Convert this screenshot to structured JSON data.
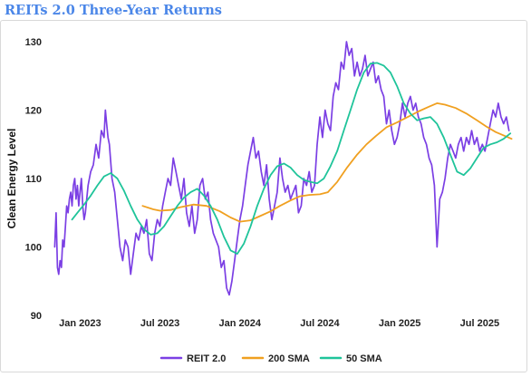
{
  "title": "REITs 2.0 Three-Year Returns",
  "chart_data": {
    "type": "line",
    "title": "REITs 2.0 Three-Year Returns",
    "xlabel": "",
    "ylabel": "Clean Energy Level",
    "x_tick_labels": [
      "Jan 2023",
      "Jul 2023",
      "Jan 2024",
      "Jul 2024",
      "Jan 2025",
      "Jul 2025"
    ],
    "x_tick_months": [
      0,
      6,
      12,
      18,
      24,
      30
    ],
    "xlim_months": [
      -2.2,
      32.9
    ],
    "ylim": [
      90,
      130
    ],
    "y_ticks": [
      90,
      100,
      110,
      120,
      130
    ],
    "grid": false,
    "legend": "bottom",
    "colors": {
      "reit": "#7b3fe4",
      "sma200": "#f0a020",
      "sma50": "#1fc49a"
    },
    "series": [
      {
        "name": "REIT 2.0",
        "points": [
          [
            -1.9,
            100
          ],
          [
            -1.8,
            105
          ],
          [
            -1.7,
            97
          ],
          [
            -1.6,
            96
          ],
          [
            -1.5,
            98
          ],
          [
            -1.4,
            97
          ],
          [
            -1.3,
            101
          ],
          [
            -1.2,
            100
          ],
          [
            -1.1,
            103
          ],
          [
            -1.0,
            106
          ],
          [
            -0.9,
            105
          ],
          [
            -0.8,
            107
          ],
          [
            -0.7,
            108
          ],
          [
            -0.6,
            106
          ],
          [
            -0.5,
            109
          ],
          [
            -0.4,
            110
          ],
          [
            -0.3,
            107
          ],
          [
            -0.2,
            109
          ],
          [
            -0.1,
            106
          ],
          [
            0.0,
            108
          ],
          [
            0.1,
            110
          ],
          [
            0.2,
            106
          ],
          [
            0.3,
            104
          ],
          [
            0.4,
            105
          ],
          [
            0.5,
            107
          ],
          [
            0.6,
            109
          ],
          [
            0.8,
            111
          ],
          [
            1.0,
            112
          ],
          [
            1.2,
            115
          ],
          [
            1.4,
            113
          ],
          [
            1.6,
            117
          ],
          [
            1.8,
            116
          ],
          [
            1.9,
            120
          ],
          [
            2.0,
            118
          ],
          [
            2.1,
            116
          ],
          [
            2.2,
            115
          ],
          [
            2.4,
            110
          ],
          [
            2.6,
            108
          ],
          [
            2.8,
            104
          ],
          [
            3.0,
            100
          ],
          [
            3.2,
            98
          ],
          [
            3.4,
            101
          ],
          [
            3.6,
            100
          ],
          [
            3.8,
            96
          ],
          [
            4.0,
            99
          ],
          [
            4.2,
            102
          ],
          [
            4.4,
            101
          ],
          [
            4.6,
            103
          ],
          [
            4.8,
            102
          ],
          [
            5.0,
            104
          ],
          [
            5.2,
            99
          ],
          [
            5.4,
            98
          ],
          [
            5.6,
            102
          ],
          [
            5.8,
            104
          ],
          [
            6.0,
            103
          ],
          [
            6.2,
            106
          ],
          [
            6.4,
            108
          ],
          [
            6.6,
            110
          ],
          [
            6.8,
            109
          ],
          [
            7.0,
            113
          ],
          [
            7.2,
            111
          ],
          [
            7.4,
            109
          ],
          [
            7.6,
            107
          ],
          [
            7.8,
            110
          ],
          [
            8.0,
            105
          ],
          [
            8.2,
            103
          ],
          [
            8.4,
            106
          ],
          [
            8.6,
            102
          ],
          [
            8.8,
            104
          ],
          [
            9.0,
            109
          ],
          [
            9.2,
            110
          ],
          [
            9.4,
            107
          ],
          [
            9.6,
            108
          ],
          [
            9.8,
            104
          ],
          [
            10.0,
            102
          ],
          [
            10.2,
            101
          ],
          [
            10.4,
            100
          ],
          [
            10.6,
            97
          ],
          [
            10.8,
            98
          ],
          [
            11.0,
            94
          ],
          [
            11.2,
            93
          ],
          [
            11.4,
            95
          ],
          [
            11.6,
            98
          ],
          [
            11.8,
            101
          ],
          [
            12.0,
            104
          ],
          [
            12.2,
            106
          ],
          [
            12.4,
            109
          ],
          [
            12.6,
            112
          ],
          [
            12.8,
            114
          ],
          [
            13.0,
            116
          ],
          [
            13.2,
            113
          ],
          [
            13.4,
            114
          ],
          [
            13.6,
            111
          ],
          [
            13.8,
            109
          ],
          [
            14.0,
            112
          ],
          [
            14.2,
            107
          ],
          [
            14.4,
            104
          ],
          [
            14.6,
            106
          ],
          [
            14.8,
            108
          ],
          [
            15.0,
            113
          ],
          [
            15.2,
            110
          ],
          [
            15.4,
            108
          ],
          [
            15.6,
            109
          ],
          [
            15.8,
            107
          ],
          [
            16.0,
            108
          ],
          [
            16.2,
            109
          ],
          [
            16.4,
            105
          ],
          [
            16.6,
            106
          ],
          [
            16.8,
            110
          ],
          [
            17.0,
            109
          ],
          [
            17.2,
            111
          ],
          [
            17.4,
            108
          ],
          [
            17.6,
            109
          ],
          [
            17.8,
            115
          ],
          [
            18.0,
            119
          ],
          [
            18.2,
            116
          ],
          [
            18.4,
            120
          ],
          [
            18.6,
            118
          ],
          [
            18.8,
            117
          ],
          [
            19.0,
            122
          ],
          [
            19.2,
            124
          ],
          [
            19.4,
            123
          ],
          [
            19.6,
            127
          ],
          [
            19.8,
            126
          ],
          [
            20.0,
            130
          ],
          [
            20.2,
            128
          ],
          [
            20.4,
            129
          ],
          [
            20.6,
            125
          ],
          [
            20.8,
            127
          ],
          [
            21.0,
            125
          ],
          [
            21.2,
            126
          ],
          [
            21.4,
            128
          ],
          [
            21.6,
            125
          ],
          [
            21.8,
            126
          ],
          [
            22.0,
            127
          ],
          [
            22.2,
            124
          ],
          [
            22.4,
            125
          ],
          [
            22.6,
            123
          ],
          [
            22.8,
            122
          ],
          [
            23.0,
            118
          ],
          [
            23.2,
            120
          ],
          [
            23.4,
            117
          ],
          [
            23.6,
            115
          ],
          [
            23.8,
            116
          ],
          [
            24.0,
            118
          ],
          [
            24.2,
            121
          ],
          [
            24.4,
            119
          ],
          [
            24.6,
            121
          ],
          [
            24.8,
            122
          ],
          [
            25.0,
            120
          ],
          [
            25.2,
            121
          ],
          [
            25.4,
            119
          ],
          [
            25.6,
            118
          ],
          [
            25.8,
            116
          ],
          [
            26.0,
            115
          ],
          [
            26.2,
            113
          ],
          [
            26.4,
            112
          ],
          [
            26.6,
            109
          ],
          [
            26.8,
            100
          ],
          [
            27.0,
            107
          ],
          [
            27.2,
            108
          ],
          [
            27.4,
            110
          ],
          [
            27.6,
            113
          ],
          [
            27.8,
            115
          ],
          [
            28.0,
            114
          ],
          [
            28.2,
            113
          ],
          [
            28.4,
            115
          ],
          [
            28.6,
            116
          ],
          [
            28.8,
            114
          ],
          [
            29.0,
            116
          ],
          [
            29.2,
            115
          ],
          [
            29.4,
            117
          ],
          [
            29.6,
            115
          ],
          [
            29.8,
            116
          ],
          [
            30.0,
            114
          ],
          [
            30.2,
            115
          ],
          [
            30.4,
            114
          ],
          [
            30.6,
            116
          ],
          [
            30.8,
            118
          ],
          [
            31.0,
            120
          ],
          [
            31.2,
            119
          ],
          [
            31.4,
            121
          ],
          [
            31.6,
            119
          ],
          [
            31.8,
            118
          ],
          [
            32.0,
            119
          ],
          [
            32.2,
            117
          ]
        ]
      },
      {
        "name": "200 SMA",
        "points": [
          [
            4.7,
            106
          ],
          [
            5.5,
            105.5
          ],
          [
            6.0,
            105.3
          ],
          [
            6.8,
            105.4
          ],
          [
            7.5,
            105.8
          ],
          [
            8.5,
            106.2
          ],
          [
            9.5,
            106.0
          ],
          [
            10.5,
            105.2
          ],
          [
            11.3,
            104.3
          ],
          [
            12.0,
            103.7
          ],
          [
            12.8,
            103.9
          ],
          [
            13.5,
            104.5
          ],
          [
            14.3,
            105.2
          ],
          [
            15.0,
            106.0
          ],
          [
            15.8,
            106.8
          ],
          [
            16.5,
            107.4
          ],
          [
            17.2,
            107.6
          ],
          [
            18.0,
            107.7
          ],
          [
            18.6,
            108.0
          ],
          [
            19.3,
            109.5
          ],
          [
            20.0,
            111.5
          ],
          [
            20.8,
            113.5
          ],
          [
            21.5,
            115.0
          ],
          [
            22.2,
            116.2
          ],
          [
            23.0,
            117.5
          ],
          [
            23.8,
            118.2
          ],
          [
            24.6,
            119.0
          ],
          [
            25.4,
            119.8
          ],
          [
            26.2,
            120.5
          ],
          [
            26.8,
            121.0
          ],
          [
            27.4,
            120.8
          ],
          [
            28.2,
            120.3
          ],
          [
            29.0,
            119.5
          ],
          [
            29.8,
            118.5
          ],
          [
            30.5,
            117.6
          ],
          [
            31.2,
            116.8
          ],
          [
            31.8,
            116.3
          ],
          [
            32.4,
            115.8
          ]
        ]
      },
      {
        "name": "50 SMA",
        "points": [
          [
            -0.6,
            104
          ],
          [
            -0.2,
            105
          ],
          [
            0.3,
            106.2
          ],
          [
            0.8,
            107.5
          ],
          [
            1.3,
            109
          ],
          [
            1.8,
            110.3
          ],
          [
            2.3,
            110.8
          ],
          [
            2.8,
            110.0
          ],
          [
            3.3,
            108.2
          ],
          [
            3.8,
            106.0
          ],
          [
            4.3,
            104.0
          ],
          [
            4.8,
            102.6
          ],
          [
            5.3,
            101.8
          ],
          [
            5.8,
            102.0
          ],
          [
            6.3,
            103.0
          ],
          [
            6.8,
            104.5
          ],
          [
            7.3,
            106.0
          ],
          [
            7.8,
            107.2
          ],
          [
            8.3,
            108.0
          ],
          [
            8.8,
            108.5
          ],
          [
            9.3,
            107.5
          ],
          [
            9.8,
            106.0
          ],
          [
            10.3,
            104.0
          ],
          [
            10.8,
            101.5
          ],
          [
            11.3,
            99.5
          ],
          [
            11.8,
            99.0
          ],
          [
            12.3,
            100.5
          ],
          [
            12.8,
            103.0
          ],
          [
            13.3,
            106.0
          ],
          [
            13.8,
            108.5
          ],
          [
            14.3,
            110.5
          ],
          [
            14.8,
            111.8
          ],
          [
            15.3,
            112.2
          ],
          [
            15.8,
            111.6
          ],
          [
            16.3,
            110.5
          ],
          [
            16.8,
            109.8
          ],
          [
            17.3,
            109.5
          ],
          [
            17.8,
            109.3
          ],
          [
            18.3,
            110.0
          ],
          [
            18.8,
            111.8
          ],
          [
            19.3,
            114.0
          ],
          [
            19.8,
            117.0
          ],
          [
            20.3,
            120.0
          ],
          [
            20.8,
            123.0
          ],
          [
            21.3,
            125.5
          ],
          [
            21.8,
            126.8
          ],
          [
            22.3,
            126.9
          ],
          [
            22.8,
            126.5
          ],
          [
            23.3,
            125.5
          ],
          [
            23.8,
            123.5
          ],
          [
            24.3,
            121.0
          ],
          [
            24.8,
            119.5
          ],
          [
            25.3,
            118.5
          ],
          [
            25.8,
            118.8
          ],
          [
            26.3,
            119.0
          ],
          [
            26.8,
            118.0
          ],
          [
            27.3,
            116.0
          ],
          [
            27.8,
            113.5
          ],
          [
            28.3,
            111.0
          ],
          [
            28.8,
            110.5
          ],
          [
            29.3,
            111.5
          ],
          [
            29.8,
            113.0
          ],
          [
            30.3,
            114.5
          ],
          [
            30.8,
            115.0
          ],
          [
            31.3,
            115.3
          ],
          [
            31.8,
            115.8
          ],
          [
            32.3,
            116.6
          ]
        ]
      }
    ]
  }
}
